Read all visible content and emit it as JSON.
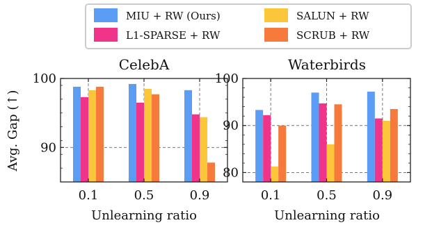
{
  "legend": {
    "items": [
      {
        "label": "MIU + RW (Ours)",
        "color": "#5b9cf5"
      },
      {
        "label": "SALUN + RW",
        "color": "#fbc63a"
      },
      {
        "label": "L1-SPARSE + RW",
        "color": "#f0348a"
      },
      {
        "label": "SCRUB + RW",
        "color": "#f57a3c"
      }
    ]
  },
  "ylabel": "Avg. Gap (↑)",
  "chart_data": [
    {
      "type": "bar",
      "title": "CelebA",
      "xlabel": "Unlearning ratio",
      "ylabel": "Avg. Gap (↑)",
      "categories": [
        "0.1",
        "0.5",
        "0.9"
      ],
      "ylim": [
        85,
        100
      ],
      "yticks": [
        90,
        100
      ],
      "grid": "dashed",
      "series": [
        {
          "name": "MIU + RW (Ours)",
          "color": "#5b9cf5",
          "values": [
            98.8,
            99.2,
            98.3
          ]
        },
        {
          "name": "L1-SPARSE + RW",
          "color": "#f0348a",
          "values": [
            97.3,
            96.5,
            94.8
          ]
        },
        {
          "name": "SALUN + RW",
          "color": "#fbc63a",
          "values": [
            98.3,
            98.5,
            94.4
          ]
        },
        {
          "name": "SCRUB + RW",
          "color": "#f57a3c",
          "values": [
            98.8,
            97.7,
            87.8
          ]
        }
      ]
    },
    {
      "type": "bar",
      "title": "Waterbirds",
      "xlabel": "Unlearning ratio",
      "ylabel": "",
      "categories": [
        "0.1",
        "0.5",
        "0.9"
      ],
      "ylim": [
        78,
        100
      ],
      "yticks": [
        80,
        90,
        100
      ],
      "grid": "dashed",
      "series": [
        {
          "name": "MIU + RW (Ours)",
          "color": "#5b9cf5",
          "values": [
            93.3,
            97.0,
            97.2
          ]
        },
        {
          "name": "L1-SPARSE + RW",
          "color": "#f0348a",
          "values": [
            92.2,
            94.7,
            91.5
          ]
        },
        {
          "name": "SALUN + RW",
          "color": "#fbc63a",
          "values": [
            81.3,
            86.0,
            91.0
          ]
        },
        {
          "name": "SCRUB + RW",
          "color": "#f57a3c",
          "values": [
            90.0,
            94.5,
            93.5
          ]
        }
      ]
    }
  ]
}
